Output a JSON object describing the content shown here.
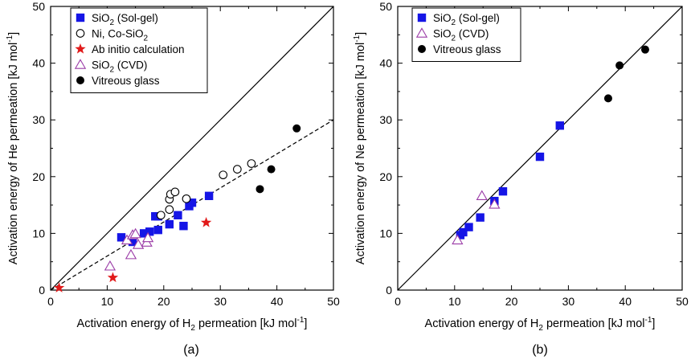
{
  "chart_data": [
    {
      "panel": "a",
      "caption": "(a)",
      "type": "scatter",
      "xlabel": {
        "main": "Activation energy of H",
        "sub": "2",
        "rest": " permeation [kJ mol",
        "sup": "-1",
        "end": "]"
      },
      "ylabel": {
        "main": "Activation energy of He permeation [kJ mol",
        "sup": "-1",
        "end": "]"
      },
      "xlim": [
        0,
        50
      ],
      "ylim": [
        0,
        50
      ],
      "xticks": [
        "0",
        "10",
        "20",
        "30",
        "40",
        "50"
      ],
      "yticks": [
        "0",
        "10",
        "20",
        "30",
        "40",
        "50"
      ],
      "legend_position": "top-left",
      "lines": [
        {
          "style": "solid",
          "points": [
            [
              0,
              0
            ],
            [
              50,
              50
            ]
          ]
        },
        {
          "style": "dashed",
          "points": [
            [
              0,
              0
            ],
            [
              50,
              30
            ]
          ]
        }
      ],
      "series": [
        {
          "name": "SiO",
          "name_sub": "2",
          "name_rest": " (Sol-gel)",
          "marker": "square-filled",
          "color": "#1515e6",
          "points": [
            [
              12.5,
              9.3
            ],
            [
              14.5,
              8.5
            ],
            [
              16.5,
              10.0
            ],
            [
              17.5,
              10.3
            ],
            [
              18.5,
              13.0
            ],
            [
              19.0,
              13.0
            ],
            [
              19.0,
              10.6
            ],
            [
              21.0,
              11.6
            ],
            [
              22.5,
              13.2
            ],
            [
              23.5,
              11.3
            ],
            [
              24.5,
              14.8
            ],
            [
              25.0,
              15.4
            ],
            [
              28.0,
              16.6
            ]
          ]
        },
        {
          "name": "Ni, Co-SiO",
          "name_sub": "2",
          "name_rest": "",
          "marker": "circle-open",
          "color": "#000000",
          "points": [
            [
              19.5,
              13.2
            ],
            [
              21.0,
              14.2
            ],
            [
              21.0,
              16.0
            ],
            [
              21.2,
              16.9
            ],
            [
              22.0,
              17.3
            ],
            [
              24.0,
              16.1
            ],
            [
              30.5,
              20.3
            ],
            [
              33.0,
              21.3
            ],
            [
              35.5,
              22.3
            ]
          ]
        },
        {
          "name": "Ab initio calculation",
          "name_sub": "",
          "name_rest": "",
          "marker": "star-filled",
          "color": "#e11a1a",
          "points": [
            [
              1.5,
              0.4
            ],
            [
              11.0,
              2.2
            ],
            [
              27.5,
              11.9
            ]
          ]
        },
        {
          "name": "SiO",
          "name_sub": "2",
          "name_rest": " (CVD)",
          "marker": "triangle-open",
          "color": "#9a3aa6",
          "points": [
            [
              10.5,
              4.2
            ],
            [
              13.5,
              8.8
            ],
            [
              14.2,
              6.2
            ],
            [
              14.5,
              9.7
            ],
            [
              15.0,
              9.9
            ],
            [
              15.5,
              8.0
            ],
            [
              17.0,
              8.4
            ],
            [
              17.2,
              9.2
            ]
          ]
        },
        {
          "name": "Vitreous glass",
          "name_sub": "",
          "name_rest": "",
          "marker": "circle-filled",
          "color": "#000000",
          "points": [
            [
              37.0,
              17.8
            ],
            [
              39.0,
              21.3
            ],
            [
              43.5,
              28.5
            ]
          ]
        }
      ]
    },
    {
      "panel": "b",
      "caption": "(b)",
      "type": "scatter",
      "xlabel": {
        "main": "Activation energy of H",
        "sub": "2",
        "rest": " permeation [kJ mol",
        "sup": "-1",
        "end": "]"
      },
      "ylabel": {
        "main": "Activation energy of Ne permeation [kJ mol",
        "sup": "-1",
        "end": "]"
      },
      "xlim": [
        0,
        50
      ],
      "ylim": [
        0,
        50
      ],
      "xticks": [
        "0",
        "10",
        "20",
        "30",
        "40",
        "50"
      ],
      "yticks": [
        "0",
        "10",
        "20",
        "30",
        "40",
        "50"
      ],
      "legend_position": "top-left",
      "lines": [
        {
          "style": "solid",
          "points": [
            [
              0,
              0
            ],
            [
              50,
              50
            ]
          ]
        }
      ],
      "series": [
        {
          "name": "SiO",
          "name_sub": "2",
          "name_rest": " (Sol-gel)",
          "marker": "square-filled",
          "color": "#1515e6",
          "points": [
            [
              11.0,
              9.7
            ],
            [
              11.5,
              10.2
            ],
            [
              12.5,
              11.1
            ],
            [
              14.5,
              12.8
            ],
            [
              17.0,
              15.7
            ],
            [
              18.5,
              17.4
            ],
            [
              25.0,
              23.5
            ],
            [
              28.5,
              29.0
            ]
          ]
        },
        {
          "name": "SiO",
          "name_sub": "2",
          "name_rest": " (CVD)",
          "marker": "triangle-open",
          "color": "#9a3aa6",
          "points": [
            [
              10.5,
              8.8
            ],
            [
              14.8,
              16.6
            ],
            [
              17.0,
              15.1
            ]
          ]
        },
        {
          "name": "Vitreous glass",
          "name_sub": "",
          "name_rest": "",
          "marker": "circle-filled",
          "color": "#000000",
          "points": [
            [
              37.0,
              33.8
            ],
            [
              39.0,
              39.6
            ],
            [
              43.5,
              42.4
            ]
          ]
        }
      ]
    }
  ]
}
